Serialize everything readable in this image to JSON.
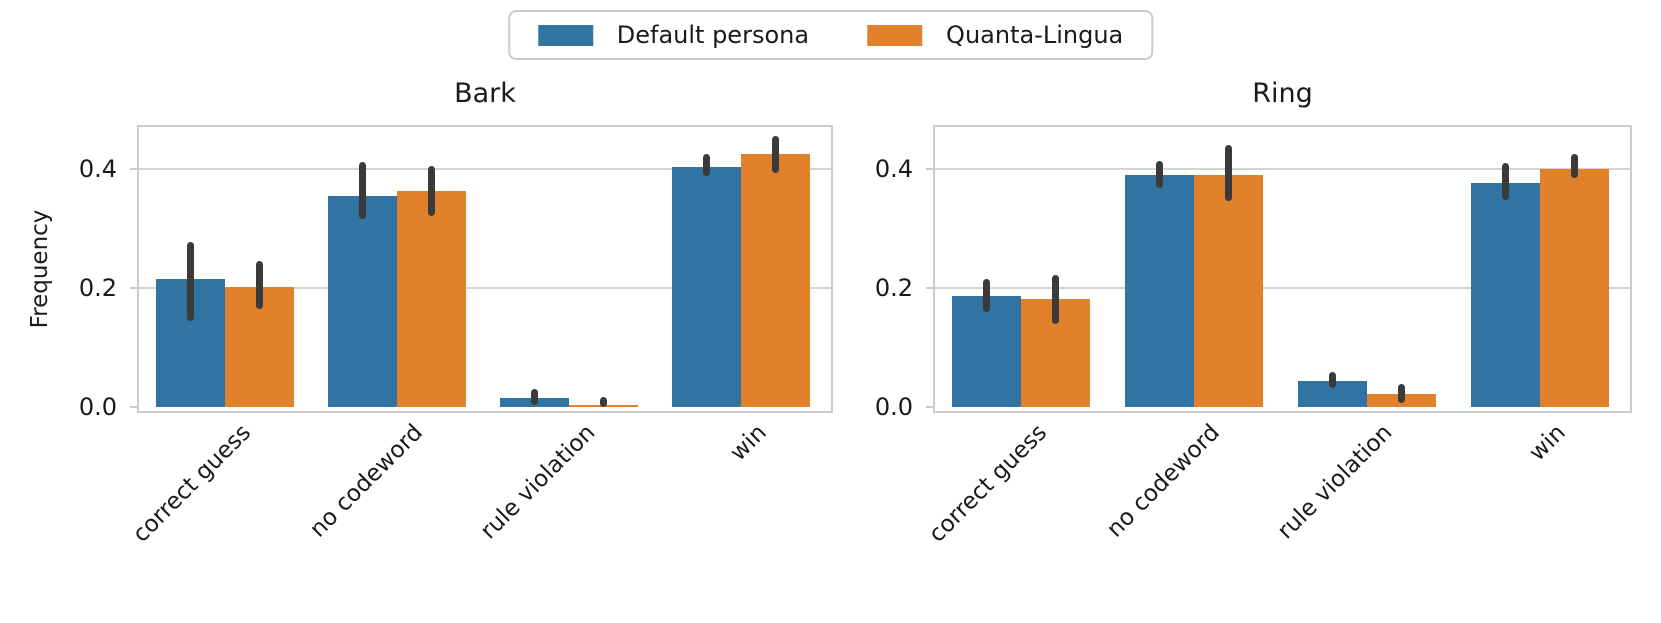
{
  "legend": {
    "items": [
      {
        "label": "Default persona",
        "color": "#3274a1"
      },
      {
        "label": "Quanta-Lingua",
        "color": "#e1812c"
      }
    ]
  },
  "chart_data": [
    {
      "type": "bar",
      "title": "Bark",
      "ylabel": "Frequency",
      "categories": [
        "correct guess",
        "no codeword",
        "rule violation",
        "win"
      ],
      "series": [
        {
          "name": "Default persona",
          "color": "#3274a1",
          "values": [
            0.215,
            0.355,
            0.015,
            0.403
          ],
          "err_low": [
            0.145,
            0.315,
            0.004,
            0.388
          ],
          "err_high": [
            0.277,
            0.412,
            0.03,
            0.424
          ]
        },
        {
          "name": "Quanta-Lingua",
          "color": "#e1812c",
          "values": [
            0.202,
            0.363,
            0.004,
            0.424
          ],
          "err_low": [
            0.165,
            0.32,
            0.0,
            0.392
          ],
          "err_high": [
            0.245,
            0.405,
            0.016,
            0.455
          ]
        }
      ],
      "yticks": [
        0.0,
        0.2,
        0.4
      ],
      "ylim": [
        0,
        0.47
      ],
      "grid": true,
      "legend_position": "top-center"
    },
    {
      "type": "bar",
      "title": "Ring",
      "ylabel": "",
      "categories": [
        "correct guess",
        "no codeword",
        "rule violation",
        "win"
      ],
      "series": [
        {
          "name": "Default persona",
          "color": "#3274a1",
          "values": [
            0.186,
            0.39,
            0.044,
            0.376
          ],
          "err_low": [
            0.16,
            0.368,
            0.032,
            0.348
          ],
          "err_high": [
            0.215,
            0.413,
            0.058,
            0.41
          ]
        },
        {
          "name": "Quanta-Lingua",
          "color": "#e1812c",
          "values": [
            0.182,
            0.39,
            0.021,
            0.4
          ],
          "err_low": [
            0.14,
            0.345,
            0.006,
            0.384
          ],
          "err_high": [
            0.222,
            0.44,
            0.038,
            0.425
          ]
        }
      ],
      "yticks": [
        0.0,
        0.2,
        0.4
      ],
      "ylim": [
        0,
        0.47
      ],
      "grid": true,
      "legend_position": "top-center"
    }
  ],
  "styles": {
    "error_bar_color": "#3a3a3a",
    "grid_color": "#d4d4d4",
    "spine_color": "#cccccc",
    "text_color": "#1a1a1a",
    "background": "#ffffff"
  }
}
